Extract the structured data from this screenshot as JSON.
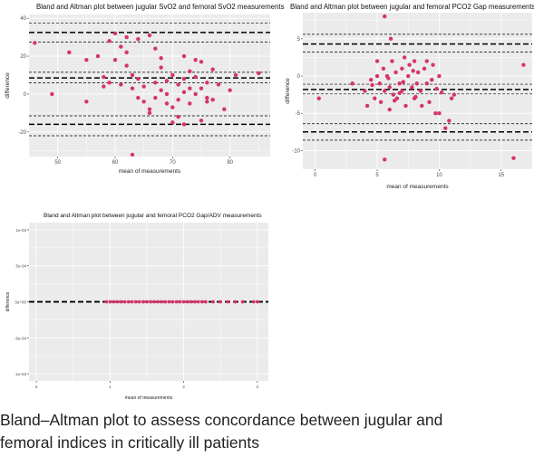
{
  "caption": {
    "line1": "Bland–Altman plot to assess concordance between jugular and",
    "line2": "femoral indices in critically ill patients"
  },
  "colors": {
    "panel_bg": "#ebebeb",
    "grid": "#ffffff",
    "point": "#d6336c",
    "line": "#000000"
  },
  "chart_data": [
    {
      "type": "scatter",
      "title": "Bland and Altman plot between jugular SvO2 and femoral SvO2 measurements",
      "xlabel": "mean of measurements",
      "ylabel": "difference",
      "xlim": [
        45,
        87
      ],
      "ylim": [
        -33,
        42
      ],
      "x_ticks": [
        50,
        60,
        70,
        80
      ],
      "y_ticks": [
        -20,
        0,
        20,
        40
      ],
      "grid": true,
      "mean_line": 8.5,
      "lower_loa": -16,
      "upper_loa": 32.5,
      "mean_ci": [
        6,
        11.5
      ],
      "lower_loa_ci": [
        -22,
        -11.5
      ],
      "upper_loa_ci": [
        27.5,
        37.5
      ],
      "points": [
        [
          46,
          27
        ],
        [
          49,
          0
        ],
        [
          52,
          22
        ],
        [
          55,
          18
        ],
        [
          57,
          20
        ],
        [
          59,
          28
        ],
        [
          60,
          32
        ],
        [
          61,
          25
        ],
        [
          62,
          30
        ],
        [
          64,
          8
        ],
        [
          64,
          29
        ],
        [
          66,
          31
        ],
        [
          55,
          -4
        ],
        [
          58,
          9
        ],
        [
          60,
          18
        ],
        [
          62,
          22
        ],
        [
          62,
          15
        ],
        [
          63,
          10
        ],
        [
          65,
          4
        ],
        [
          66,
          -10
        ],
        [
          67,
          -2
        ],
        [
          68,
          2
        ],
        [
          68,
          14
        ],
        [
          69,
          7
        ],
        [
          69,
          -5
        ],
        [
          70,
          10
        ],
        [
          70,
          -15
        ],
        [
          71,
          5
        ],
        [
          71,
          -3
        ],
        [
          72,
          20
        ],
        [
          72,
          8
        ],
        [
          72,
          1
        ],
        [
          73,
          -5
        ],
        [
          73,
          12
        ],
        [
          74,
          18
        ],
        [
          74,
          9
        ],
        [
          75,
          -14
        ],
        [
          75,
          3
        ],
        [
          75,
          17
        ],
        [
          76,
          -2
        ],
        [
          76,
          6
        ],
        [
          77,
          13
        ],
        [
          77,
          -3
        ],
        [
          78,
          5
        ],
        [
          79,
          -8
        ],
        [
          80,
          2
        ],
        [
          81,
          10
        ],
        [
          85,
          11
        ],
        [
          63,
          -32
        ],
        [
          67,
          24
        ],
        [
          68,
          19
        ],
        [
          64,
          -2
        ],
        [
          66,
          -8
        ],
        [
          69,
          0
        ],
        [
          70,
          -7
        ],
        [
          65,
          -4
        ],
        [
          67,
          6
        ],
        [
          71,
          -12
        ],
        [
          72,
          -16
        ],
        [
          74,
          0
        ],
        [
          76,
          -4
        ],
        [
          73,
          3
        ],
        [
          59,
          6
        ],
        [
          61,
          5
        ],
        [
          63,
          3
        ],
        [
          58,
          4
        ]
      ]
    },
    {
      "type": "scatter",
      "title": "Bland and Altman plot between jugular and femoral PCO2 Gap measurements",
      "xlabel": "mean of measurements",
      "ylabel": "difference",
      "xlim": [
        -1,
        17.5
      ],
      "ylim": [
        -12.5,
        8.5
      ],
      "x_ticks": [
        0,
        5,
        10,
        15
      ],
      "y_ticks": [
        -10,
        -5,
        0,
        5
      ],
      "grid": true,
      "mean_line": -1.8,
      "lower_loa": -7.5,
      "upper_loa": 4.3,
      "mean_ci": [
        -2.4,
        -1.1
      ],
      "lower_loa_ci": [
        -8.6,
        -6.4
      ],
      "upper_loa_ci": [
        3.2,
        5.6
      ],
      "points": [
        [
          5.6,
          8
        ],
        [
          6.1,
          5
        ],
        [
          0.3,
          -3
        ],
        [
          3,
          -1
        ],
        [
          4,
          -2
        ],
        [
          4.2,
          -4
        ],
        [
          4.5,
          -0.5
        ],
        [
          4.8,
          -3
        ],
        [
          5,
          2
        ],
        [
          5,
          0
        ],
        [
          5.2,
          -1
        ],
        [
          5.3,
          -3.5
        ],
        [
          5.5,
          1
        ],
        [
          5.6,
          -2
        ],
        [
          5.8,
          0
        ],
        [
          6,
          -1.5
        ],
        [
          6,
          -4.5
        ],
        [
          6.2,
          2
        ],
        [
          6.3,
          -2.5
        ],
        [
          6.5,
          0.5
        ],
        [
          6.6,
          -3
        ],
        [
          6.8,
          -1
        ],
        [
          7,
          1
        ],
        [
          7,
          -2
        ],
        [
          7.2,
          2.5
        ],
        [
          7.3,
          -4
        ],
        [
          7.5,
          0
        ],
        [
          7.6,
          1.5
        ],
        [
          7.8,
          -1.5
        ],
        [
          8,
          -3
        ],
        [
          8,
          2
        ],
        [
          8.2,
          -1
        ],
        [
          8.3,
          0.5
        ],
        [
          8.5,
          -2
        ],
        [
          8.6,
          -4
        ],
        [
          8.8,
          1
        ],
        [
          9,
          -1
        ],
        [
          9,
          2
        ],
        [
          9.2,
          -3.5
        ],
        [
          9.4,
          -0.5
        ],
        [
          9.5,
          1.5
        ],
        [
          9.7,
          -5
        ],
        [
          10,
          0
        ],
        [
          10,
          -5
        ],
        [
          10.5,
          -7
        ],
        [
          10.8,
          -6
        ],
        [
          11,
          -3
        ],
        [
          11.2,
          -2.5
        ],
        [
          16,
          -11
        ],
        [
          16.8,
          1.5
        ],
        [
          5.6,
          -11.2
        ],
        [
          6.8,
          -2.3
        ],
        [
          7.1,
          -0.8
        ],
        [
          4.6,
          -1.2
        ],
        [
          8.1,
          -2.8
        ],
        [
          9.8,
          -1.7
        ],
        [
          10.2,
          -2.2
        ],
        [
          6.4,
          -3.3
        ],
        [
          7.9,
          0.7
        ],
        [
          5.9,
          -0.3
        ]
      ]
    },
    {
      "type": "scatter",
      "title": "Bland and Altman plot between jugular and femoral PCO2 Gap/ADV measurements",
      "xlabel": "mean of measurements",
      "ylabel": "difference",
      "xlim": [
        -0.1,
        3.15
      ],
      "ylim": [
        -0.0011,
        0.0011
      ],
      "x_ticks": [
        0,
        1,
        2,
        3
      ],
      "y_ticks": [
        -0.001,
        -0.0005,
        0,
        0.0005,
        0.001
      ],
      "y_tick_labels": [
        "-1e-03",
        "-5e-04",
        "0e+00",
        "5e-04",
        "1e-03"
      ],
      "grid": true,
      "mean_line": 0,
      "lower_loa": 0,
      "upper_loa": 0,
      "points": [
        [
          0.95,
          0
        ],
        [
          1.0,
          0
        ],
        [
          1.05,
          0
        ],
        [
          1.1,
          0
        ],
        [
          1.15,
          0
        ],
        [
          1.2,
          0
        ],
        [
          1.25,
          0
        ],
        [
          1.3,
          0
        ],
        [
          1.35,
          0
        ],
        [
          1.4,
          0
        ],
        [
          1.45,
          0
        ],
        [
          1.5,
          0
        ],
        [
          1.55,
          0
        ],
        [
          1.6,
          0
        ],
        [
          1.65,
          0
        ],
        [
          1.7,
          0
        ],
        [
          1.75,
          0
        ],
        [
          1.8,
          0
        ],
        [
          1.85,
          0
        ],
        [
          1.9,
          0
        ],
        [
          1.95,
          0
        ],
        [
          2.0,
          0
        ],
        [
          2.05,
          0
        ],
        [
          2.1,
          0
        ],
        [
          2.15,
          0
        ],
        [
          2.2,
          0
        ],
        [
          2.25,
          0
        ],
        [
          2.3,
          0
        ],
        [
          2.4,
          0
        ],
        [
          2.5,
          0
        ],
        [
          2.6,
          0
        ],
        [
          2.7,
          0
        ],
        [
          2.8,
          0
        ],
        [
          2.95,
          0
        ],
        [
          3.0,
          0
        ]
      ]
    }
  ]
}
